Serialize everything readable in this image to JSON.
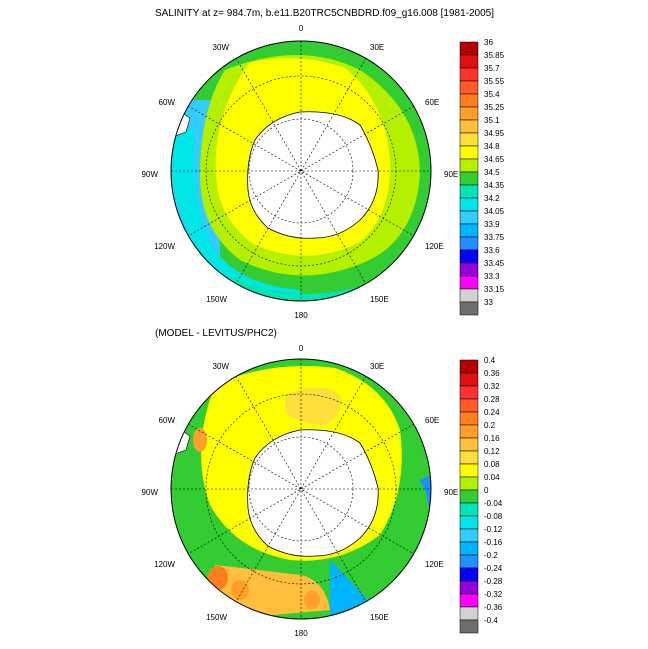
{
  "panels": [
    {
      "title": "SALINITY at z= 984.7m, b.e11.B20TRC5CNBDRD.f09_g16.008 [1981-2005]",
      "lon_labels": [
        "0",
        "30E",
        "60E",
        "90E",
        "120E",
        "150E",
        "180",
        "150W",
        "120W",
        "90W",
        "60W",
        "30W"
      ],
      "colorbar": {
        "labels": [
          "36",
          "35.85",
          "35.7",
          "35.55",
          "35.4",
          "35.25",
          "35.1",
          "34.95",
          "34.8",
          "34.65",
          "34.5",
          "34.35",
          "34.2",
          "34.05",
          "33.9",
          "33.75",
          "33.6",
          "33.45",
          "33.3",
          "33.15",
          "33"
        ],
        "colors": [
          "#b40000",
          "#e01010",
          "#ff3030",
          "#ff5a28",
          "#ff7f1a",
          "#ff9f2a",
          "#ffbf3c",
          "#ffdf3c",
          "#ffff00",
          "#b4f000",
          "#33cc33",
          "#00e6b4",
          "#00e6e6",
          "#33ccff",
          "#00b4ff",
          "#1e90ff",
          "#0000ff",
          "#9600dc",
          "#ff00ff",
          "#d2d2d2",
          "#6e6e6e"
        ]
      }
    },
    {
      "title": "(MODEL - LEVITUS/PHC2)",
      "lon_labels": [
        "0",
        "30E",
        "60E",
        "90E",
        "120E",
        "150E",
        "180",
        "150W",
        "120W",
        "90W",
        "60W",
        "30W"
      ],
      "colorbar": {
        "labels": [
          "0.4",
          "0.36",
          "0.32",
          "0.28",
          "0.24",
          "0.2",
          "0.16",
          "0.12",
          "0.08",
          "0.04",
          "0",
          "-0.04",
          "-0.08",
          "-0.12",
          "-0.16",
          "-0.2",
          "-0.24",
          "-0.28",
          "-0.32",
          "-0.36",
          "-0.4"
        ],
        "colors": [
          "#b40000",
          "#e01010",
          "#ff3030",
          "#ff5a28",
          "#ff7f1a",
          "#ff9f2a",
          "#ffbf3c",
          "#ffdf3c",
          "#ffff00",
          "#b4f000",
          "#33cc33",
          "#00e6b4",
          "#00e6e6",
          "#33ccff",
          "#00b4ff",
          "#1e90ff",
          "#0000ff",
          "#9600dc",
          "#ff00ff",
          "#d2d2d2",
          "#6e6e6e"
        ]
      }
    }
  ]
}
